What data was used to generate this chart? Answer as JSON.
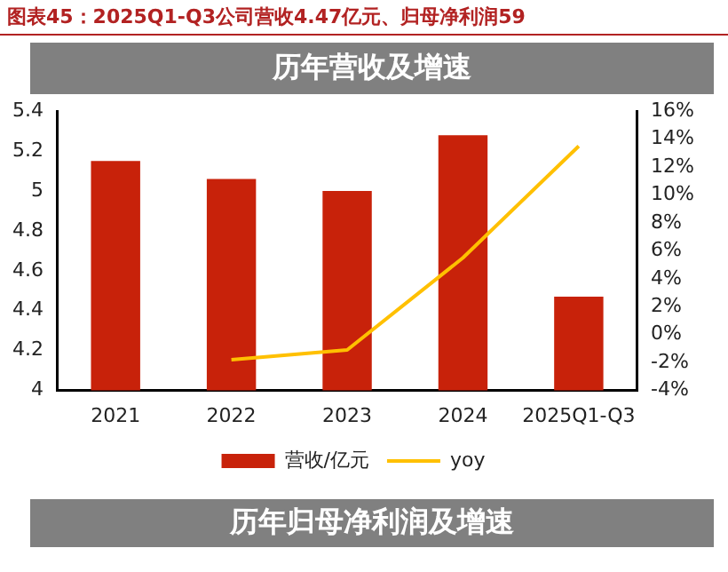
{
  "chart_data": {
    "type": "bar",
    "title": "图表45：2025Q1-Q3公司营收4.47亿元、归母净利润59",
    "subtitle": "历年营收及增速",
    "categories": [
      "2021",
      "2022",
      "2023",
      "2024",
      "2025Q1-Q3"
    ],
    "series": [
      {
        "name": "营收/亿元",
        "color": "#c8220a",
        "values": [
          5.15,
          5.06,
          5.0,
          5.28,
          4.47
        ]
      },
      {
        "name": "yoy",
        "type": "line",
        "axis": "y2",
        "color": "#ffc000",
        "values": [
          null,
          -1.8,
          -1.1,
          5.5,
          13.5
        ]
      }
    ],
    "ylim": [
      4,
      5.4
    ],
    "yticks": [
      4,
      4.2,
      4.4,
      4.6,
      4.8,
      5,
      5.2,
      5.4
    ],
    "y2lim": [
      -4,
      16
    ],
    "y2ticks": [
      {
        "value": -4,
        "label": "-4%"
      },
      {
        "value": -2,
        "label": "-2%"
      },
      {
        "value": 0,
        "label": "0%"
      },
      {
        "value": 2,
        "label": "2%"
      },
      {
        "value": 4,
        "label": "4%"
      },
      {
        "value": 6,
        "label": "6%"
      },
      {
        "value": 8,
        "label": "8%"
      },
      {
        "value": 10,
        "label": "10%"
      },
      {
        "value": 12,
        "label": "12%"
      },
      {
        "value": 14,
        "label": "14%"
      },
      {
        "value": 16,
        "label": "16%"
      }
    ],
    "grid": false,
    "legend": "bottom",
    "marker": "none",
    "line_style": "solid",
    "annotations": [
      "历年归母净利润及增速"
    ]
  }
}
